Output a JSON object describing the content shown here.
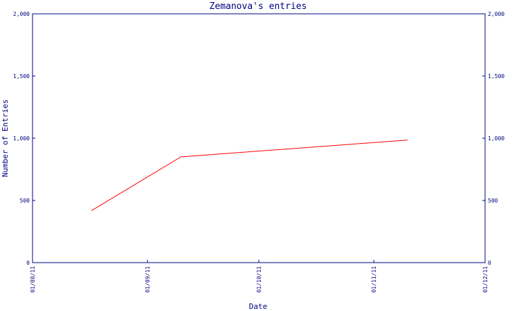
{
  "chart_data": {
    "type": "line",
    "title": "Zemanova's entries",
    "xlabel": "Date",
    "ylabel": "Number of Entries",
    "ylim": [
      0,
      2000
    ],
    "y_ticks": [
      0,
      500,
      1000,
      1500,
      2000
    ],
    "y_tick_labels": [
      "0",
      "500",
      "1,000",
      "1,500",
      "2,000"
    ],
    "xlim": [
      "2011-08-01",
      "2011-12-01"
    ],
    "x_ticks": [
      "2011-08-01",
      "2011-09-01",
      "2011-10-01",
      "2011-11-01",
      "2011-12-01"
    ],
    "x_tick_labels": [
      "01/08/11",
      "01/09/11",
      "01/10/11",
      "01/11/11",
      "01/12/11"
    ],
    "grid": false,
    "right_axis": true,
    "series": [
      {
        "color": "#ff0000",
        "points": [
          {
            "x": "2011-08-17",
            "y": 420
          },
          {
            "x": "2011-09-10",
            "y": 850
          },
          {
            "x": "2011-11-10",
            "y": 985
          }
        ]
      }
    ]
  }
}
